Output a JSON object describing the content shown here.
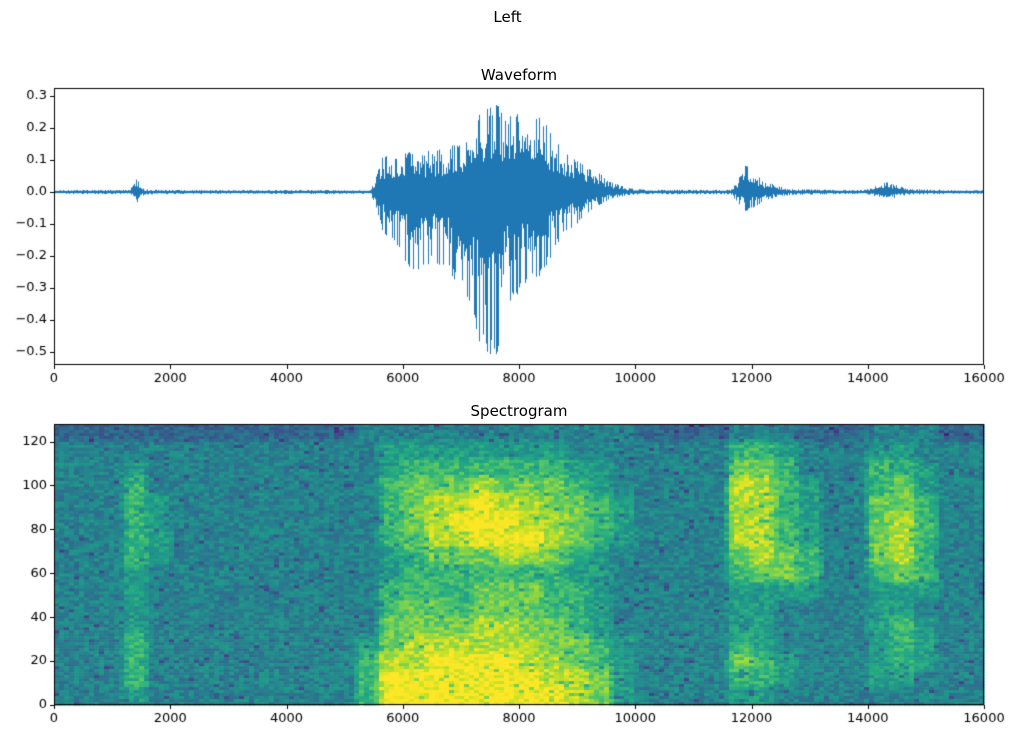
{
  "figure": {
    "title": "Left",
    "background_color": "#ffffff",
    "text_color": "#000000",
    "axes_color": "#000000"
  },
  "chart_data": [
    {
      "type": "line",
      "title": "Waveform",
      "xlabel": "",
      "ylabel": "",
      "xlim": [
        0,
        16000
      ],
      "ylim": [
        -0.5406,
        0.325
      ],
      "grid": false,
      "legend": false,
      "x_ticks": [
        0,
        2000,
        4000,
        6000,
        8000,
        10000,
        12000,
        14000,
        16000
      ],
      "x_tick_labels": [
        "0",
        "2000",
        "4000",
        "6000",
        "8000",
        "10000",
        "12000",
        "14000",
        "16000"
      ],
      "y_ticks": [
        0.3,
        0.2,
        0.1,
        0.0,
        -0.1,
        -0.2,
        -0.3,
        -0.4,
        -0.5
      ],
      "y_tick_labels": [
        "0.3",
        "0.2",
        "0.1",
        "0.0",
        "−0.1",
        "−0.2",
        "−0.3",
        "−0.4",
        "−0.5"
      ],
      "line_color": "#1f77b4",
      "series": "audio amplitude vs sample index",
      "envelope_points": [
        [
          0,
          0.006,
          -0.006
        ],
        [
          1300,
          0.007,
          -0.007
        ],
        [
          1380,
          0.025,
          -0.02
        ],
        [
          1430,
          0.045,
          -0.038
        ],
        [
          1490,
          0.02,
          -0.018
        ],
        [
          1560,
          0.008,
          -0.008
        ],
        [
          2500,
          0.006,
          -0.006
        ],
        [
          5450,
          0.006,
          -0.006
        ],
        [
          5550,
          0.05,
          -0.05
        ],
        [
          5650,
          0.11,
          -0.12
        ],
        [
          5900,
          0.12,
          -0.18
        ],
        [
          6200,
          0.13,
          -0.26
        ],
        [
          6500,
          0.13,
          -0.22
        ],
        [
          6800,
          0.14,
          -0.25
        ],
        [
          7100,
          0.17,
          -0.33
        ],
        [
          7350,
          0.26,
          -0.5
        ],
        [
          7600,
          0.28,
          -0.53
        ],
        [
          7800,
          0.24,
          -0.35
        ],
        [
          8100,
          0.25,
          -0.3
        ],
        [
          8400,
          0.23,
          -0.26
        ],
        [
          8700,
          0.15,
          -0.15
        ],
        [
          9000,
          0.1,
          -0.1
        ],
        [
          9300,
          0.07,
          -0.05
        ],
        [
          9600,
          0.03,
          -0.02
        ],
        [
          9900,
          0.012,
          -0.01
        ],
        [
          10200,
          0.007,
          -0.007
        ],
        [
          11650,
          0.007,
          -0.007
        ],
        [
          11750,
          0.03,
          -0.03
        ],
        [
          11900,
          0.085,
          -0.06
        ],
        [
          12050,
          0.06,
          -0.05
        ],
        [
          12200,
          0.035,
          -0.03
        ],
        [
          12450,
          0.02,
          -0.015
        ],
        [
          12700,
          0.009,
          -0.009
        ],
        [
          13900,
          0.006,
          -0.006
        ],
        [
          14080,
          0.012,
          -0.01
        ],
        [
          14200,
          0.028,
          -0.022
        ],
        [
          14350,
          0.032,
          -0.025
        ],
        [
          14550,
          0.02,
          -0.015
        ],
        [
          14750,
          0.009,
          -0.008
        ],
        [
          16000,
          0.005,
          -0.005
        ]
      ]
    },
    {
      "type": "heatmap",
      "title": "Spectrogram",
      "xlabel": "",
      "ylabel": "",
      "xlim": [
        0,
        16000
      ],
      "ylim": [
        0,
        128
      ],
      "grid": false,
      "x_ticks": [
        0,
        2000,
        4000,
        6000,
        8000,
        10000,
        12000,
        14000,
        16000
      ],
      "x_tick_labels": [
        "0",
        "2000",
        "4000",
        "6000",
        "8000",
        "10000",
        "12000",
        "14000",
        "16000"
      ],
      "y_ticks": [
        0,
        20,
        40,
        60,
        80,
        100,
        120
      ],
      "y_tick_labels": [
        "0",
        "20",
        "40",
        "60",
        "80",
        "100",
        "120"
      ],
      "colormap": "viridis",
      "colormap_stops": [
        [
          0.0,
          "#440154"
        ],
        [
          0.1,
          "#482475"
        ],
        [
          0.2,
          "#414487"
        ],
        [
          0.3,
          "#355f8d"
        ],
        [
          0.4,
          "#2a788e"
        ],
        [
          0.5,
          "#21918c"
        ],
        [
          0.6,
          "#22a884"
        ],
        [
          0.7,
          "#44bf70"
        ],
        [
          0.8,
          "#7ad151"
        ],
        [
          0.9,
          "#bddf26"
        ],
        [
          1.0,
          "#fde725"
        ]
      ],
      "intensity_range": [
        0,
        9
      ],
      "x_bin_size": 400,
      "y_bin_size": 8,
      "grid_rows_bottom_to_top": [
        [
          4,
          4,
          4,
          5,
          4,
          4,
          4,
          4,
          4,
          4,
          4,
          4,
          4,
          6,
          9,
          9,
          9,
          9,
          9,
          9,
          9,
          9,
          8,
          7,
          5,
          4,
          4,
          4,
          4,
          5,
          5,
          4,
          4,
          4,
          4,
          4,
          4,
          4,
          4,
          4
        ],
        [
          4,
          4,
          4,
          6,
          4,
          4,
          4,
          4,
          4,
          4,
          4,
          4,
          4,
          6,
          9,
          9,
          9,
          9,
          9,
          9,
          9,
          8,
          8,
          7,
          5,
          4,
          4,
          4,
          4,
          6,
          6,
          5,
          4,
          4,
          4,
          5,
          5,
          4,
          4,
          4
        ],
        [
          4,
          4,
          4,
          6,
          4,
          4,
          4,
          4,
          4,
          4,
          4,
          4,
          4,
          6,
          8,
          8,
          9,
          9,
          9,
          9,
          8,
          8,
          7,
          6,
          5,
          4,
          4,
          4,
          4,
          7,
          6,
          5,
          4,
          4,
          4,
          5,
          6,
          5,
          4,
          4
        ],
        [
          4,
          4,
          4,
          6,
          4,
          4,
          4,
          4,
          4,
          4,
          4,
          4,
          4,
          5,
          7,
          8,
          8,
          8,
          8,
          8,
          8,
          7,
          7,
          6,
          5,
          4,
          4,
          4,
          4,
          6,
          5,
          4,
          4,
          4,
          4,
          5,
          6,
          5,
          4,
          4
        ],
        [
          4,
          4,
          4,
          5,
          4,
          4,
          4,
          4,
          4,
          4,
          4,
          4,
          4,
          4,
          7,
          7,
          7,
          7,
          8,
          8,
          7,
          7,
          6,
          5,
          4,
          4,
          4,
          4,
          4,
          5,
          5,
          4,
          4,
          4,
          4,
          5,
          6,
          5,
          4,
          4
        ],
        [
          4,
          4,
          4,
          5,
          4,
          4,
          4,
          4,
          4,
          4,
          4,
          4,
          4,
          4,
          6,
          7,
          7,
          6,
          7,
          7,
          7,
          6,
          6,
          5,
          4,
          4,
          4,
          4,
          4,
          5,
          5,
          4,
          4,
          4,
          4,
          5,
          5,
          4,
          4,
          4
        ],
        [
          4,
          4,
          4,
          5,
          4,
          4,
          4,
          4,
          4,
          4,
          4,
          4,
          4,
          4,
          6,
          6,
          6,
          6,
          7,
          7,
          7,
          6,
          6,
          5,
          4,
          4,
          4,
          4,
          4,
          5,
          5,
          5,
          5,
          4,
          4,
          5,
          5,
          5,
          4,
          4
        ],
        [
          4,
          4,
          4,
          5,
          4,
          4,
          4,
          4,
          4,
          4,
          4,
          4,
          4,
          4,
          5,
          6,
          6,
          6,
          6,
          6,
          6,
          6,
          5,
          5,
          4,
          4,
          4,
          4,
          4,
          6,
          7,
          7,
          6,
          4,
          4,
          6,
          7,
          6,
          4,
          4
        ],
        [
          4,
          4,
          4,
          6,
          5,
          4,
          4,
          4,
          4,
          4,
          4,
          4,
          4,
          4,
          5,
          6,
          7,
          7,
          7,
          8,
          8,
          7,
          6,
          5,
          4,
          4,
          4,
          4,
          4,
          7,
          8,
          7,
          6,
          4,
          4,
          7,
          8,
          6,
          4,
          4
        ],
        [
          4,
          4,
          4,
          6,
          5,
          4,
          4,
          4,
          4,
          4,
          4,
          4,
          4,
          4,
          6,
          7,
          8,
          8,
          9,
          9,
          9,
          8,
          7,
          6,
          5,
          4,
          4,
          4,
          4,
          8,
          8,
          6,
          5,
          4,
          4,
          7,
          8,
          6,
          4,
          4
        ],
        [
          4,
          4,
          4,
          6,
          5,
          4,
          4,
          4,
          4,
          4,
          4,
          4,
          4,
          4,
          6,
          7,
          8,
          9,
          9,
          9,
          8,
          8,
          7,
          6,
          5,
          4,
          4,
          4,
          4,
          8,
          8,
          6,
          5,
          4,
          4,
          7,
          8,
          6,
          4,
          4
        ],
        [
          4,
          4,
          4,
          6,
          5,
          4,
          4,
          4,
          4,
          4,
          4,
          4,
          4,
          4,
          6,
          7,
          8,
          8,
          9,
          8,
          8,
          7,
          7,
          6,
          5,
          4,
          4,
          4,
          4,
          8,
          8,
          6,
          5,
          4,
          4,
          7,
          7,
          6,
          4,
          4
        ],
        [
          4,
          4,
          4,
          6,
          4,
          4,
          4,
          4,
          4,
          4,
          4,
          4,
          4,
          4,
          6,
          7,
          7,
          7,
          8,
          7,
          7,
          7,
          6,
          5,
          4,
          4,
          4,
          4,
          4,
          8,
          8,
          6,
          5,
          4,
          4,
          6,
          7,
          5,
          4,
          4
        ],
        [
          4,
          4,
          4,
          5,
          4,
          4,
          4,
          4,
          4,
          4,
          4,
          4,
          4,
          4,
          5,
          6,
          6,
          6,
          6,
          6,
          6,
          6,
          5,
          5,
          4,
          4,
          4,
          4,
          4,
          7,
          7,
          6,
          4,
          4,
          4,
          6,
          6,
          5,
          4,
          4
        ],
        [
          4,
          4,
          4,
          4,
          4,
          4,
          4,
          4,
          4,
          4,
          4,
          4,
          4,
          4,
          5,
          5,
          5,
          5,
          5,
          5,
          5,
          5,
          4,
          4,
          4,
          4,
          4,
          4,
          4,
          6,
          6,
          5,
          4,
          4,
          4,
          5,
          5,
          4,
          4,
          4
        ],
        [
          3,
          3,
          3,
          3,
          3,
          3,
          3,
          3,
          3,
          3,
          3,
          3,
          3,
          4,
          4,
          4,
          4,
          4,
          4,
          4,
          4,
          4,
          4,
          4,
          4,
          3,
          3,
          3,
          3,
          4,
          4,
          4,
          3,
          3,
          3,
          4,
          4,
          4,
          3,
          3
        ]
      ]
    }
  ]
}
